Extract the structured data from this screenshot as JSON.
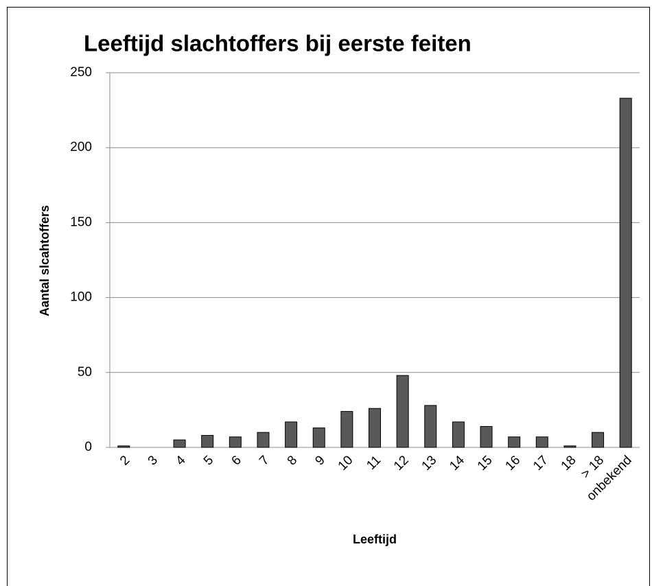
{
  "chart_data": {
    "type": "bar",
    "title": "Leeftijd slachtoffers bij eerste feiten",
    "x_label": "Leeftijd",
    "y_label": "Aantal slcahtoffers",
    "categories": [
      "2",
      "3",
      "4",
      "5",
      "6",
      "7",
      "8",
      "9",
      "10",
      "11",
      "12",
      "13",
      "14",
      "15",
      "16",
      "17",
      "18",
      "> 18",
      "onbekend"
    ],
    "values": [
      1,
      0,
      5,
      8,
      7,
      10,
      17,
      13,
      24,
      26,
      48,
      28,
      17,
      14,
      7,
      7,
      1,
      10,
      233
    ],
    "color": "#595959",
    "ylim": [
      0,
      250
    ],
    "yticks": [
      0,
      50,
      100,
      150,
      200,
      250
    ],
    "grid": true
  }
}
